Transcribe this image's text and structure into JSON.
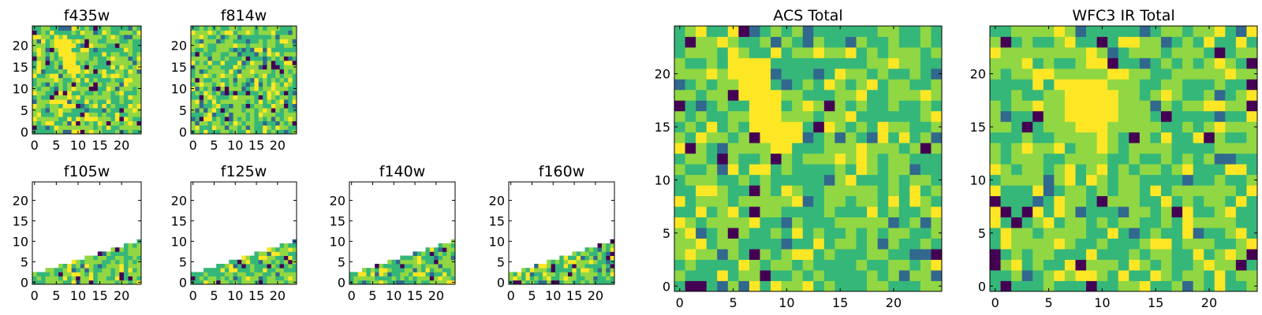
{
  "chart_data": [
    {
      "type": "heatmap",
      "title": "f435w",
      "xlim": [
        0,
        24
      ],
      "ylim": [
        0,
        24
      ],
      "xticks": [
        "0",
        "5",
        "10",
        "15",
        "20"
      ],
      "yticks": [
        "0",
        "5",
        "10",
        "15",
        "20"
      ],
      "pattern": "noise",
      "seed": 11,
      "feature": "diagonal-bright-streak",
      "coverage": "full"
    },
    {
      "type": "heatmap",
      "title": "f814w",
      "xlim": [
        0,
        24
      ],
      "ylim": [
        0,
        24
      ],
      "xticks": [
        "0",
        "5",
        "10",
        "15",
        "20"
      ],
      "yticks": [
        "0",
        "5",
        "10",
        "15",
        "20"
      ],
      "pattern": "noise",
      "seed": 23,
      "feature": "none",
      "coverage": "full"
    },
    {
      "type": "heatmap",
      "title": "f105w",
      "xlim": [
        0,
        24
      ],
      "ylim": [
        0,
        24
      ],
      "xticks": [
        "0",
        "5",
        "10",
        "15",
        "20"
      ],
      "yticks": [
        "0",
        "5",
        "10",
        "15",
        "20"
      ],
      "pattern": "noise",
      "seed": 37,
      "feature": "none",
      "coverage": "lower-wedge"
    },
    {
      "type": "heatmap",
      "title": "f125w",
      "xlim": [
        0,
        24
      ],
      "ylim": [
        0,
        24
      ],
      "xticks": [
        "0",
        "5",
        "10",
        "15",
        "20"
      ],
      "yticks": [
        "0",
        "5",
        "10",
        "15",
        "20"
      ],
      "pattern": "noise",
      "seed": 41,
      "feature": "none",
      "coverage": "lower-wedge"
    },
    {
      "type": "heatmap",
      "title": "f140w",
      "xlim": [
        0,
        24
      ],
      "ylim": [
        0,
        24
      ],
      "xticks": [
        "0",
        "5",
        "10",
        "15",
        "20"
      ],
      "yticks": [
        "0",
        "5",
        "10",
        "15",
        "20"
      ],
      "pattern": "noise",
      "seed": 53,
      "feature": "none",
      "coverage": "lower-wedge"
    },
    {
      "type": "heatmap",
      "title": "f160w",
      "xlim": [
        0,
        24
      ],
      "ylim": [
        0,
        24
      ],
      "xticks": [
        "0",
        "5",
        "10",
        "15",
        "20"
      ],
      "yticks": [
        "0",
        "5",
        "10",
        "15",
        "20"
      ],
      "pattern": "noise",
      "seed": 67,
      "feature": "none",
      "coverage": "lower-wedge"
    },
    {
      "type": "heatmap",
      "title": "ACS Total",
      "xlim": [
        0,
        24
      ],
      "ylim": [
        0,
        24
      ],
      "xticks": [
        "0",
        "5",
        "10",
        "15",
        "20"
      ],
      "yticks": [
        "0",
        "5",
        "10",
        "15",
        "20"
      ],
      "pattern": "noise",
      "seed": 79,
      "feature": "diagonal-bright-streak",
      "coverage": "full"
    },
    {
      "type": "heatmap",
      "title": "WFC3 IR Total",
      "xlim": [
        0,
        24
      ],
      "ylim": [
        0,
        24
      ],
      "xticks": [
        "0",
        "5",
        "10",
        "15",
        "20"
      ],
      "yticks": [
        "0",
        "5",
        "10",
        "15",
        "20"
      ],
      "pattern": "noise",
      "seed": 97,
      "feature": "central-bright-blob",
      "coverage": "full"
    }
  ],
  "colormap": [
    "#440154",
    "#31688e",
    "#21918c",
    "#35b779",
    "#90d743",
    "#fde725"
  ],
  "empty_color": "#ffffff"
}
